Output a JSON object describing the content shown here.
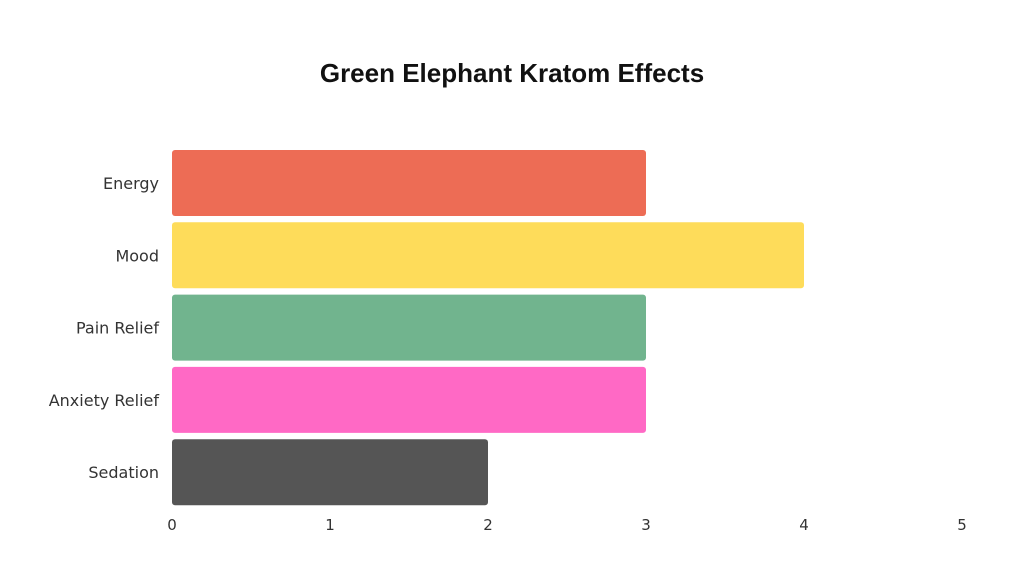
{
  "chart_data": {
    "type": "bar",
    "orientation": "horizontal",
    "title": "Green Elephant Kratom Effects",
    "categories": [
      "Energy",
      "Mood",
      "Pain Relief",
      "Anxiety Relief",
      "Sedation"
    ],
    "values": [
      3,
      4,
      3,
      3,
      2
    ],
    "colors": [
      "#ED6C55",
      "#FEDC5A",
      "#71B48E",
      "#FF69C5",
      "#555555"
    ],
    "xlim": [
      0,
      5
    ],
    "xticks": [
      "0",
      "1",
      "2",
      "3",
      "4",
      "5"
    ],
    "xlabel": "",
    "ylabel": "",
    "grid": false,
    "legend": "none"
  }
}
